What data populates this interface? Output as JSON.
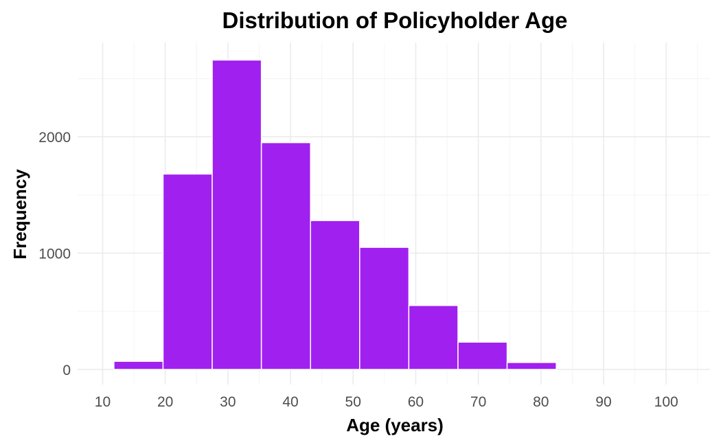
{
  "chart_data": {
    "type": "bar",
    "title": "Distribution of Policyholder Age",
    "xlabel": "Age (years)",
    "ylabel": "Frequency",
    "bin_width": 7.85,
    "bins": [
      {
        "start": 11.8,
        "end": 19.65,
        "count": 70
      },
      {
        "start": 19.65,
        "end": 27.5,
        "count": 1680
      },
      {
        "start": 27.5,
        "end": 35.35,
        "count": 2660
      },
      {
        "start": 35.35,
        "end": 43.2,
        "count": 1950
      },
      {
        "start": 43.2,
        "end": 51.05,
        "count": 1280
      },
      {
        "start": 51.05,
        "end": 58.9,
        "count": 1050
      },
      {
        "start": 58.9,
        "end": 66.75,
        "count": 550
      },
      {
        "start": 66.75,
        "end": 74.6,
        "count": 235
      },
      {
        "start": 74.6,
        "end": 82.45,
        "count": 60
      }
    ],
    "xlim": [
      6,
      107
    ],
    "ylim": [
      -130,
      2810
    ],
    "x_ticks": [
      10,
      20,
      30,
      40,
      50,
      60,
      70,
      80,
      90,
      100
    ],
    "y_ticks": [
      0,
      1000,
      2000
    ],
    "grid": true,
    "colors": {
      "bar_fill": "#a020f0",
      "bar_outline": "#ffffff"
    }
  }
}
